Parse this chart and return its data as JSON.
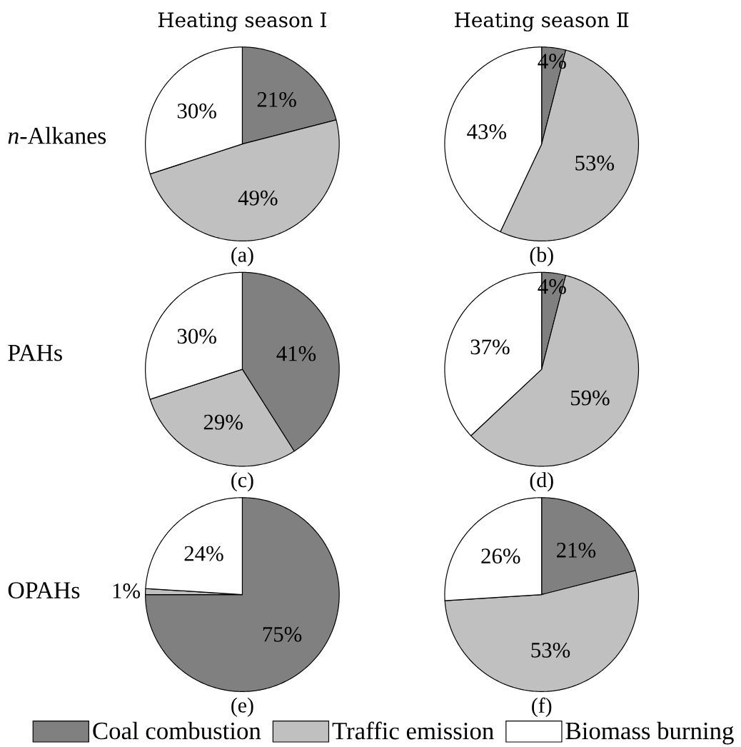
{
  "chart_data": [
    {
      "type": "pie",
      "title": "Heating season Ⅰ",
      "ylabel": "*n*-Alkanes",
      "xlabel": "(a)",
      "categories": [
        null,
        null,
        null
      ],
      "values": [
        21,
        49,
        30
      ],
      "value_labels": [
        "21%",
        "49%",
        "30%"
      ],
      "colors": [
        "#808080",
        "#c0c0c0",
        "#ffffff"
      ]
    },
    {
      "type": "pie",
      "title": "Heating season Ⅱ",
      "xlabel": "(b)",
      "categories": [
        null,
        null,
        null
      ],
      "values": [
        4,
        53,
        43
      ],
      "value_labels": [
        "4%",
        "53%",
        "43%"
      ],
      "colors": [
        "#808080",
        "#c0c0c0",
        "#ffffff"
      ]
    },
    {
      "type": "pie",
      "ylabel": "PAHs",
      "xlabel": "(c)",
      "categories": [
        null,
        null,
        null
      ],
      "values": [
        41,
        29,
        30
      ],
      "value_labels": [
        "41%",
        "29%",
        "30%"
      ],
      "colors": [
        "#808080",
        "#c0c0c0",
        "#ffffff"
      ]
    },
    {
      "type": "pie",
      "xlabel": "(d)",
      "categories": [
        null,
        null,
        null
      ],
      "values": [
        4,
        59,
        37
      ],
      "value_labels": [
        "4%",
        "59%",
        "37%"
      ],
      "colors": [
        "#808080",
        "#c0c0c0",
        "#ffffff"
      ]
    },
    {
      "type": "pie",
      "ylabel": "OPAHs",
      "xlabel": "(e)",
      "categories": [
        null,
        null,
        null
      ],
      "values": [
        75,
        1,
        24
      ],
      "value_labels": [
        "75%",
        "1%",
        "24%"
      ],
      "colors": [
        "#808080",
        "#c0c0c0",
        "#ffffff"
      ]
    },
    {
      "type": "pie",
      "xlabel": "(f)",
      "categories": [
        "Coal combustion",
        "Traffic emission",
        "Biomass burning"
      ],
      "values": [
        21,
        53,
        26
      ],
      "value_labels": [
        "21%",
        "53%",
        "26%"
      ],
      "colors": [
        "#808080",
        "#c0c0c0",
        "#ffffff"
      ],
      "legend": "bottom"
    }
  ]
}
